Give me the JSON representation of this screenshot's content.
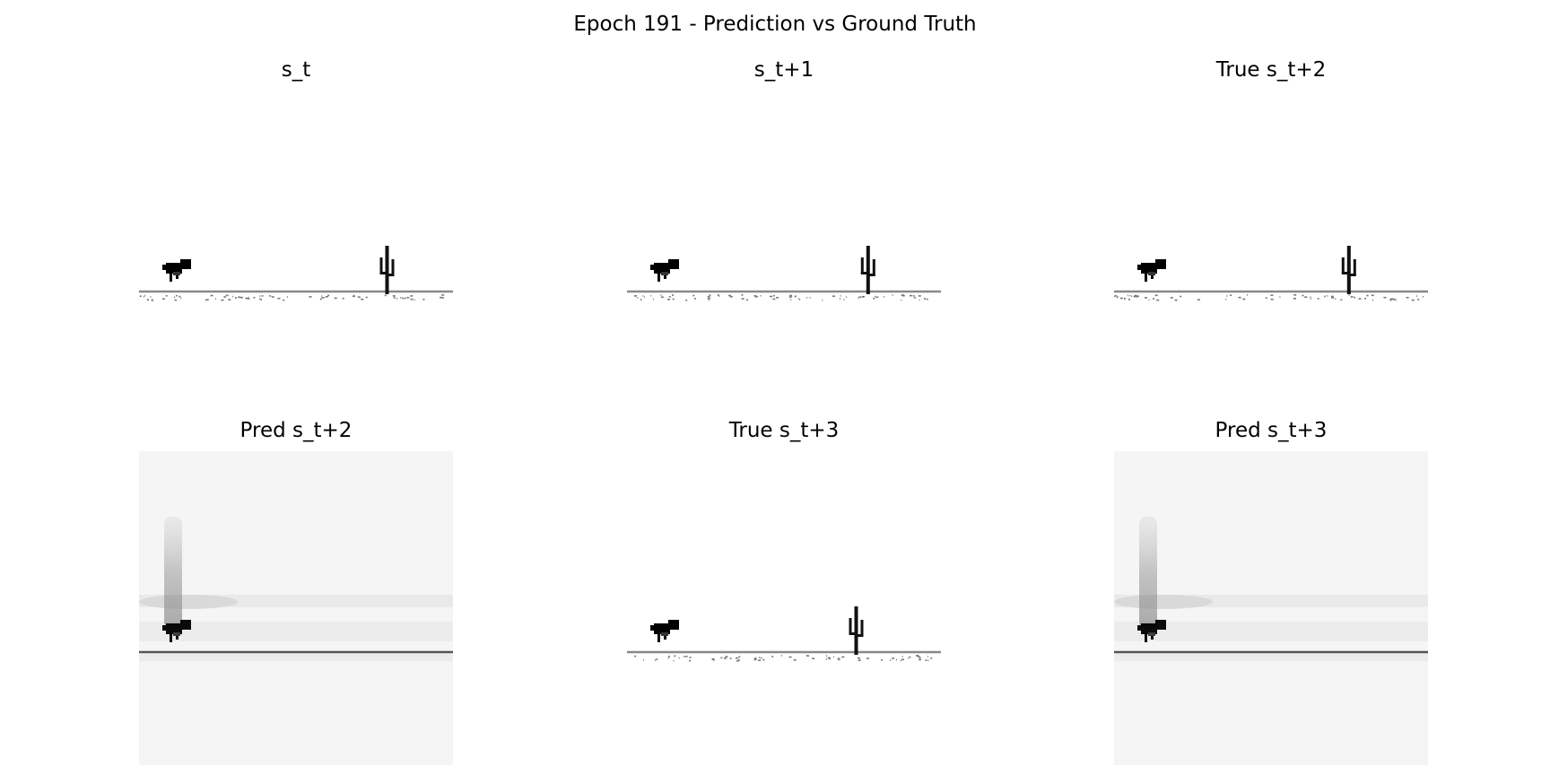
{
  "figure": {
    "title": "Epoch 191 - Prediction vs Ground Truth"
  },
  "panels": [
    {
      "title": "s_t",
      "kind": "true",
      "cactus_pos": 0.79
    },
    {
      "title": "s_t+1",
      "kind": "true",
      "cactus_pos": 0.768
    },
    {
      "title": "True s_t+2",
      "kind": "true",
      "cactus_pos": 0.748
    },
    {
      "title": "Pred s_t+2",
      "kind": "pred"
    },
    {
      "title": "True s_t+3",
      "kind": "true",
      "cactus_pos": 0.73
    },
    {
      "title": "Pred s_t+3",
      "kind": "pred"
    }
  ]
}
